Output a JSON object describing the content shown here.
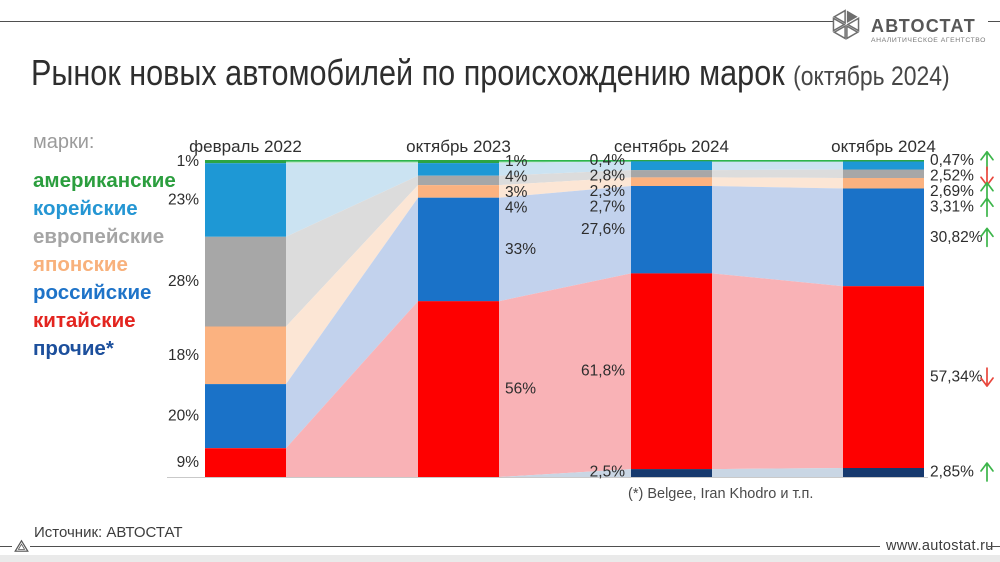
{
  "header": {
    "title": "Рынок новых автомобилей по происхождению марок",
    "title_suffix": "(октябрь 2024)",
    "logo": {
      "name": "АВТОСТАТ",
      "subtitle": "АНАЛИТИЧЕСКОЕ АГЕНТСТВО"
    }
  },
  "legend": {
    "label": "марки:",
    "items": [
      {
        "label": "американские",
        "color": "#2b9e3e"
      },
      {
        "label": "корейские",
        "color": "#2596d3"
      },
      {
        "label": "европейские",
        "color": "#a5a5a5"
      },
      {
        "label": "японские",
        "color": "#f8b17c"
      },
      {
        "label": "российские",
        "color": "#1e73c8"
      },
      {
        "label": "китайские",
        "color": "#e3241f"
      },
      {
        "label": "прочие*",
        "color": "#1c4f9c"
      }
    ]
  },
  "chart_data": {
    "type": "area",
    "subtype": "alluvial-stacked-100-percent",
    "title": "Рынок новых автомобилей по происхождению марок (октябрь 2024)",
    "unit": "%",
    "ylim": [
      0,
      100
    ],
    "legend_position": "left",
    "categories": [
      "февраль 2022",
      "октябрь 2023",
      "сентябрь 2024",
      "октябрь 2024"
    ],
    "series": [
      {
        "name": "американские",
        "color": "#2ca444",
        "flow_color": "#b9e6c8",
        "values": [
          1,
          1,
          0.4,
          0.47
        ],
        "labels": [
          "1%",
          "1%",
          "0,4%",
          "0,47%"
        ],
        "trend": "up"
      },
      {
        "name": "корейские",
        "color": "#1e98d5",
        "flow_color": "#cbe3f2",
        "values": [
          23,
          4,
          2.8,
          2.52
        ],
        "labels": [
          "23%",
          "4%",
          "2,8%",
          "2,52%"
        ],
        "trend": "down"
      },
      {
        "name": "европейские",
        "color": "#a7a7a7",
        "flow_color": "#dcdcdc",
        "values": [
          28,
          3,
          2.3,
          2.69
        ],
        "labels": [
          "28%",
          "3%",
          "2,3%",
          "2,69%"
        ],
        "trend": "up"
      },
      {
        "name": "японские",
        "color": "#fbb280",
        "flow_color": "#fce6d5",
        "values": [
          18,
          4,
          2.7,
          3.31
        ],
        "labels": [
          "18%",
          "4%",
          "2,7%",
          "3,31%"
        ],
        "trend": "up"
      },
      {
        "name": "российские",
        "color": "#1a72c8",
        "flow_color": "#c2d2ed",
        "values": [
          20,
          33,
          27.6,
          30.82
        ],
        "labels": [
          "20%",
          "33%",
          "27,6%",
          "30,82%"
        ],
        "trend": "up"
      },
      {
        "name": "китайские",
        "color": "#fe0000",
        "flow_color": "#f9b2b6",
        "values": [
          9,
          56,
          61.8,
          57.34
        ],
        "labels": [
          "9%",
          "56%",
          "61,8%",
          "57,34%"
        ],
        "trend": "down"
      },
      {
        "name": "прочие*",
        "color": "#16396e",
        "flow_color": "#c9d6e4",
        "values": [
          0,
          0,
          2.5,
          2.85
        ],
        "labels": [
          null,
          null,
          "2,5%",
          "2,85%"
        ],
        "trend": "up"
      }
    ],
    "label_sides": [
      "left",
      "right",
      "left",
      "right"
    ],
    "trend_colors": {
      "up": "#3cb54a",
      "down": "#e8463c"
    },
    "top_line_color": "#2cb54c",
    "baseline_color": "#c9c9c9",
    "grid": false
  },
  "footnote": "(*) Belgee, Iran Khodro и т.п.",
  "footer": {
    "source": "Источник: АВТОСТАТ",
    "site": "www.autostat.ru"
  }
}
